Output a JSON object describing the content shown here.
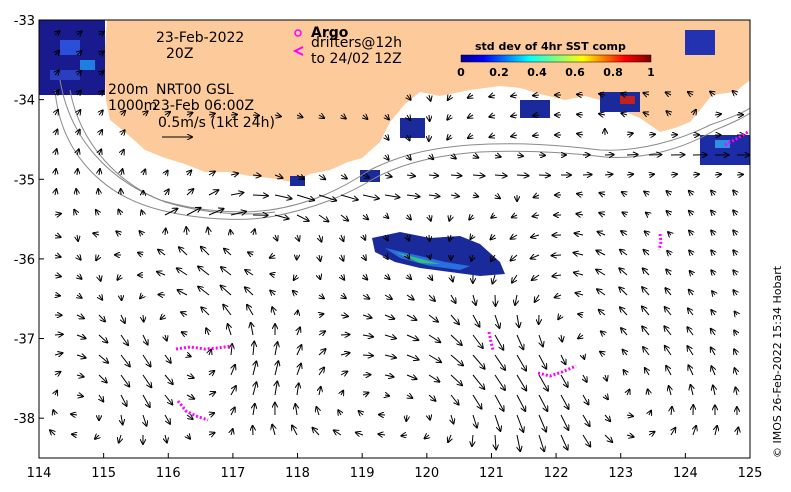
{
  "annotations": {
    "date": "23-Feb-2022",
    "time": "20Z",
    "depth_200": "200m",
    "depth_1000": "1000m",
    "product": "NRT00 GSL",
    "product_time": "23-Feb 06:00Z",
    "scale_label": "0.5m/s (1kt 24h)"
  },
  "legend": {
    "argo": "Argo",
    "drifters": "drifters@12h",
    "drifters_to": "to 24/02 12Z",
    "argo_symbol": "o",
    "drifter_symbol": "<",
    "colorbar_title": "std dev of 4hr SST comp",
    "colorbar_ticks": [
      "0",
      "0.2",
      "0.4",
      "0.6",
      "0.8",
      "1"
    ]
  },
  "axes": {
    "x_ticks": [
      "114",
      "115",
      "116",
      "117",
      "118",
      "119",
      "120",
      "121",
      "122",
      "123",
      "124",
      "125"
    ],
    "y_ticks": [
      "-33",
      "-34",
      "-35",
      "-36",
      "-37",
      "-38"
    ],
    "lon_range": [
      114,
      125
    ],
    "lat_range": [
      -38.5,
      -33
    ]
  },
  "credit": "© IMOS 26-Feb-2022 15:34 Hobart",
  "colors": {
    "land": "#fdcb9b",
    "drifter": "#ff00ff",
    "contour": "#888888"
  }
}
